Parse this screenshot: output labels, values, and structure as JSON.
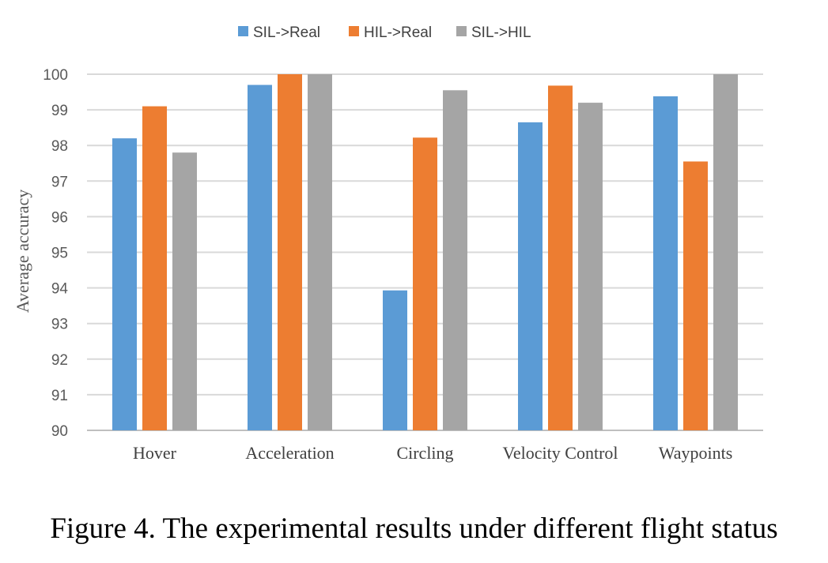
{
  "chart_data": {
    "type": "bar",
    "categories": [
      "Hover",
      "Acceleration",
      "Circling",
      "Velocity Control",
      "Waypoints"
    ],
    "series": [
      {
        "name": "SIL->Real",
        "color": "#5b9bd5",
        "values": [
          98.2,
          99.7,
          93.93,
          98.65,
          99.38
        ]
      },
      {
        "name": "HIL->Real",
        "color": "#ed7d31",
        "values": [
          99.1,
          100,
          98.22,
          99.68,
          97.55
        ]
      },
      {
        "name": "SIL->HIL",
        "color": "#a5a5a5",
        "values": [
          97.8,
          100,
          99.55,
          99.2,
          100
        ]
      }
    ],
    "ylabel": "Average accuracy",
    "xlabel": "",
    "ylim": [
      90,
      100
    ],
    "yticks": [
      90,
      91,
      92,
      93,
      94,
      95,
      96,
      97,
      98,
      99,
      100
    ],
    "grid": true,
    "legend_position": "top"
  },
  "caption": "Figure 4. The experimental results under different flight status"
}
